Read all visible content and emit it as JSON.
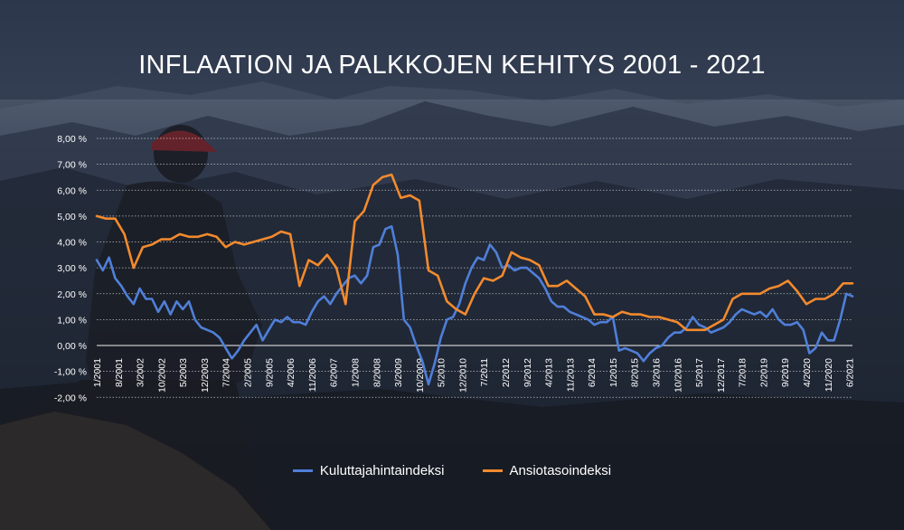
{
  "chart_data": {
    "type": "line",
    "title": "INFLAATION JA PALKKOJEN KEHITYS 2001 - 2021",
    "xlabel": "",
    "ylabel": "",
    "ylim": [
      -2,
      8
    ],
    "y_ticks": [
      8,
      7,
      6,
      5,
      4,
      3,
      2,
      1,
      0,
      -1,
      -2
    ],
    "y_tick_labels": [
      "8,00 %",
      "7,00 %",
      "6,00 %",
      "5,00 %",
      "4,00 %",
      "3,00 %",
      "2,00 %",
      "1,00 %",
      "0,00 %",
      "-1,00 %",
      "-2,00 %"
    ],
    "x_range": [
      "1/2001",
      "7/2021"
    ],
    "x_tick_labels": [
      "1/2001",
      "8/2001",
      "3/2002",
      "10/2002",
      "5/2003",
      "12/2003",
      "7/2004",
      "2/2005",
      "9/2005",
      "4/2006",
      "11/2006",
      "6/2007",
      "1/2008",
      "8/2008",
      "3/2009",
      "10/2009",
      "5/2010",
      "12/2010",
      "7/2011",
      "2/2012",
      "9/2012",
      "4/2013",
      "11/2013",
      "6/2014",
      "1/2015",
      "8/2015",
      "3/2016",
      "10/2016",
      "5/2017",
      "12/2017",
      "7/2018",
      "2/2019",
      "9/2019",
      "4/2020",
      "11/2020",
      "6/2021"
    ],
    "grid": true,
    "legend": "bottom",
    "series": [
      {
        "name": "Kuluttajahintaindeksi",
        "color": "#4f7fd8",
        "points": [
          [
            "1/2001",
            3.3
          ],
          [
            "3/2001",
            2.9
          ],
          [
            "5/2001",
            3.4
          ],
          [
            "7/2001",
            2.6
          ],
          [
            "9/2001",
            2.3
          ],
          [
            "11/2001",
            1.9
          ],
          [
            "1/2002",
            1.6
          ],
          [
            "3/2002",
            2.2
          ],
          [
            "5/2002",
            1.8
          ],
          [
            "7/2002",
            1.8
          ],
          [
            "9/2002",
            1.3
          ],
          [
            "11/2002",
            1.7
          ],
          [
            "1/2003",
            1.2
          ],
          [
            "3/2003",
            1.7
          ],
          [
            "5/2003",
            1.4
          ],
          [
            "7/2003",
            1.7
          ],
          [
            "9/2003",
            1.0
          ],
          [
            "11/2003",
            0.7
          ],
          [
            "1/2004",
            0.6
          ],
          [
            "3/2004",
            0.5
          ],
          [
            "5/2004",
            0.3
          ],
          [
            "7/2004",
            -0.1
          ],
          [
            "9/2004",
            -0.5
          ],
          [
            "11/2004",
            -0.2
          ],
          [
            "1/2005",
            0.2
          ],
          [
            "3/2005",
            0.5
          ],
          [
            "5/2005",
            0.8
          ],
          [
            "7/2005",
            0.2
          ],
          [
            "9/2005",
            0.6
          ],
          [
            "11/2005",
            1.0
          ],
          [
            "1/2006",
            0.9
          ],
          [
            "3/2006",
            1.1
          ],
          [
            "5/2006",
            0.9
          ],
          [
            "7/2006",
            0.9
          ],
          [
            "9/2006",
            0.8
          ],
          [
            "11/2006",
            1.3
          ],
          [
            "1/2007",
            1.7
          ],
          [
            "3/2007",
            1.9
          ],
          [
            "5/2007",
            1.6
          ],
          [
            "7/2007",
            2.0
          ],
          [
            "9/2007",
            2.3
          ],
          [
            "11/2007",
            2.6
          ],
          [
            "1/2008",
            2.7
          ],
          [
            "3/2008",
            2.4
          ],
          [
            "5/2008",
            2.7
          ],
          [
            "7/2008",
            3.8
          ],
          [
            "9/2008",
            3.9
          ],
          [
            "11/2008",
            4.5
          ],
          [
            "1/2009",
            4.6
          ],
          [
            "3/2009",
            3.5
          ],
          [
            "5/2009",
            1.0
          ],
          [
            "7/2009",
            0.7
          ],
          [
            "9/2009",
            0.0
          ],
          [
            "11/2009",
            -0.6
          ],
          [
            "1/2010",
            -1.5
          ],
          [
            "3/2010",
            -0.7
          ],
          [
            "5/2010",
            0.3
          ],
          [
            "7/2010",
            1.0
          ],
          [
            "9/2010",
            1.1
          ],
          [
            "11/2010",
            1.6
          ],
          [
            "1/2011",
            2.4
          ],
          [
            "3/2011",
            3.0
          ],
          [
            "5/2011",
            3.4
          ],
          [
            "7/2011",
            3.3
          ],
          [
            "9/2011",
            3.9
          ],
          [
            "11/2011",
            3.6
          ],
          [
            "1/2012",
            3.0
          ],
          [
            "3/2012",
            3.1
          ],
          [
            "5/2012",
            2.9
          ],
          [
            "7/2012",
            3.0
          ],
          [
            "9/2012",
            3.0
          ],
          [
            "11/2012",
            2.8
          ],
          [
            "1/2013",
            2.6
          ],
          [
            "3/2013",
            2.2
          ],
          [
            "5/2013",
            1.7
          ],
          [
            "7/2013",
            1.5
          ],
          [
            "9/2013",
            1.5
          ],
          [
            "11/2013",
            1.3
          ],
          [
            "1/2014",
            1.2
          ],
          [
            "3/2014",
            1.1
          ],
          [
            "5/2014",
            1.0
          ],
          [
            "7/2014",
            0.8
          ],
          [
            "9/2014",
            0.9
          ],
          [
            "11/2014",
            0.9
          ],
          [
            "1/2015",
            1.1
          ],
          [
            "3/2015",
            -0.2
          ],
          [
            "5/2015",
            -0.1
          ],
          [
            "7/2015",
            -0.2
          ],
          [
            "9/2015",
            -0.3
          ],
          [
            "11/2015",
            -0.6
          ],
          [
            "1/2016",
            -0.3
          ],
          [
            "3/2016",
            -0.1
          ],
          [
            "5/2016",
            0.0
          ],
          [
            "7/2016",
            0.3
          ],
          [
            "9/2016",
            0.5
          ],
          [
            "11/2016",
            0.5
          ],
          [
            "1/2017",
            0.7
          ],
          [
            "3/2017",
            1.1
          ],
          [
            "5/2017",
            0.8
          ],
          [
            "7/2017",
            0.7
          ],
          [
            "9/2017",
            0.5
          ],
          [
            "11/2017",
            0.6
          ],
          [
            "1/2018",
            0.7
          ],
          [
            "3/2018",
            0.9
          ],
          [
            "5/2018",
            1.2
          ],
          [
            "7/2018",
            1.4
          ],
          [
            "9/2018",
            1.3
          ],
          [
            "11/2018",
            1.2
          ],
          [
            "1/2019",
            1.3
          ],
          [
            "3/2019",
            1.1
          ],
          [
            "5/2019",
            1.4
          ],
          [
            "7/2019",
            1.0
          ],
          [
            "9/2019",
            0.8
          ],
          [
            "11/2019",
            0.8
          ],
          [
            "1/2020",
            0.9
          ],
          [
            "3/2020",
            0.6
          ],
          [
            "5/2020",
            -0.3
          ],
          [
            "7/2020",
            -0.1
          ],
          [
            "9/2020",
            0.5
          ],
          [
            "11/2020",
            0.2
          ],
          [
            "1/2021",
            0.2
          ],
          [
            "3/2021",
            1.0
          ],
          [
            "5/2021",
            2.0
          ],
          [
            "7/2021",
            1.9
          ]
        ]
      },
      {
        "name": "Ansiotasoindeksi",
        "color": "#f28a2e",
        "points": [
          [
            "1/2001",
            5.0
          ],
          [
            "4/2001",
            4.9
          ],
          [
            "7/2001",
            4.9
          ],
          [
            "10/2001",
            4.3
          ],
          [
            "1/2002",
            3.0
          ],
          [
            "4/2002",
            3.8
          ],
          [
            "7/2002",
            3.9
          ],
          [
            "10/2002",
            4.1
          ],
          [
            "1/2003",
            4.1
          ],
          [
            "4/2003",
            4.3
          ],
          [
            "7/2003",
            4.2
          ],
          [
            "10/2003",
            4.2
          ],
          [
            "1/2004",
            4.3
          ],
          [
            "4/2004",
            4.2
          ],
          [
            "7/2004",
            3.8
          ],
          [
            "10/2004",
            4.0
          ],
          [
            "1/2005",
            3.9
          ],
          [
            "4/2005",
            4.0
          ],
          [
            "7/2005",
            4.1
          ],
          [
            "10/2005",
            4.2
          ],
          [
            "1/2006",
            4.4
          ],
          [
            "4/2006",
            4.3
          ],
          [
            "7/2006",
            2.3
          ],
          [
            "10/2006",
            3.3
          ],
          [
            "1/2007",
            3.1
          ],
          [
            "4/2007",
            3.5
          ],
          [
            "7/2007",
            3.0
          ],
          [
            "10/2007",
            1.6
          ],
          [
            "1/2008",
            4.8
          ],
          [
            "4/2008",
            5.2
          ],
          [
            "7/2008",
            6.2
          ],
          [
            "10/2008",
            6.5
          ],
          [
            "1/2009",
            6.6
          ],
          [
            "4/2009",
            5.7
          ],
          [
            "7/2009",
            5.8
          ],
          [
            "10/2009",
            5.6
          ],
          [
            "1/2010",
            2.9
          ],
          [
            "4/2010",
            2.7
          ],
          [
            "7/2010",
            1.7
          ],
          [
            "10/2010",
            1.4
          ],
          [
            "1/2011",
            1.2
          ],
          [
            "4/2011",
            2.0
          ],
          [
            "7/2011",
            2.6
          ],
          [
            "10/2011",
            2.5
          ],
          [
            "1/2012",
            2.7
          ],
          [
            "4/2012",
            3.6
          ],
          [
            "7/2012",
            3.4
          ],
          [
            "10/2012",
            3.3
          ],
          [
            "1/2013",
            3.1
          ],
          [
            "4/2013",
            2.3
          ],
          [
            "7/2013",
            2.3
          ],
          [
            "10/2013",
            2.5
          ],
          [
            "1/2014",
            2.2
          ],
          [
            "4/2014",
            1.9
          ],
          [
            "7/2014",
            1.2
          ],
          [
            "10/2014",
            1.2
          ],
          [
            "1/2015",
            1.1
          ],
          [
            "4/2015",
            1.3
          ],
          [
            "7/2015",
            1.2
          ],
          [
            "10/2015",
            1.2
          ],
          [
            "1/2016",
            1.1
          ],
          [
            "4/2016",
            1.1
          ],
          [
            "7/2016",
            1.0
          ],
          [
            "10/2016",
            0.9
          ],
          [
            "1/2017",
            0.6
          ],
          [
            "4/2017",
            0.6
          ],
          [
            "7/2017",
            0.6
          ],
          [
            "10/2017",
            0.8
          ],
          [
            "1/2018",
            1.0
          ],
          [
            "4/2018",
            1.8
          ],
          [
            "7/2018",
            2.0
          ],
          [
            "10/2018",
            2.0
          ],
          [
            "1/2019",
            2.0
          ],
          [
            "4/2019",
            2.2
          ],
          [
            "7/2019",
            2.3
          ],
          [
            "10/2019",
            2.5
          ],
          [
            "1/2020",
            2.1
          ],
          [
            "4/2020",
            1.6
          ],
          [
            "7/2020",
            1.8
          ],
          [
            "10/2020",
            1.8
          ],
          [
            "1/2021",
            2.0
          ],
          [
            "4/2021",
            2.4
          ],
          [
            "7/2021",
            2.4
          ]
        ]
      }
    ]
  }
}
